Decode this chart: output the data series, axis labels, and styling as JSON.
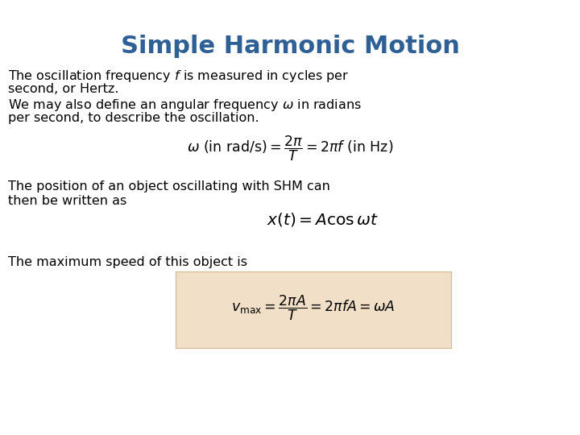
{
  "title": "Simple Harmonic Motion",
  "title_color": "#2E6096",
  "title_fontsize": 22,
  "background_color": "#ffffff",
  "text_color": "#000000",
  "text_fontsize": 11.5,
  "para1_line1": "The oscillation frequency $f$ is measured in cycles per",
  "para1_line2": "second, or Hertz.",
  "para2_line1": "We may also define an angular frequency $\\omega$ in radians",
  "para2_line2": "per second, to describe the oscillation.",
  "eq1": "$\\omega\\ (\\mathrm{in\\ rad/s}) = \\dfrac{2\\pi}{T} = 2\\pi f\\ (\\mathrm{in\\ Hz})$",
  "para3_line1": "The position of an object oscillating with SHM can",
  "para3_line2": "then be written as",
  "eq2": "$x(t) = A\\cos\\omega t$",
  "para4": "The maximum speed of this object is",
  "eq3": "$v_{\\mathrm{max}} = \\dfrac{2\\pi A}{T} = 2\\pi f A = \\omega A$",
  "eq3_box_facecolor": "#F2DFC8",
  "eq3_box_edgecolor": "#D4B896",
  "figsize": [
    7.2,
    5.4
  ],
  "dpi": 100
}
